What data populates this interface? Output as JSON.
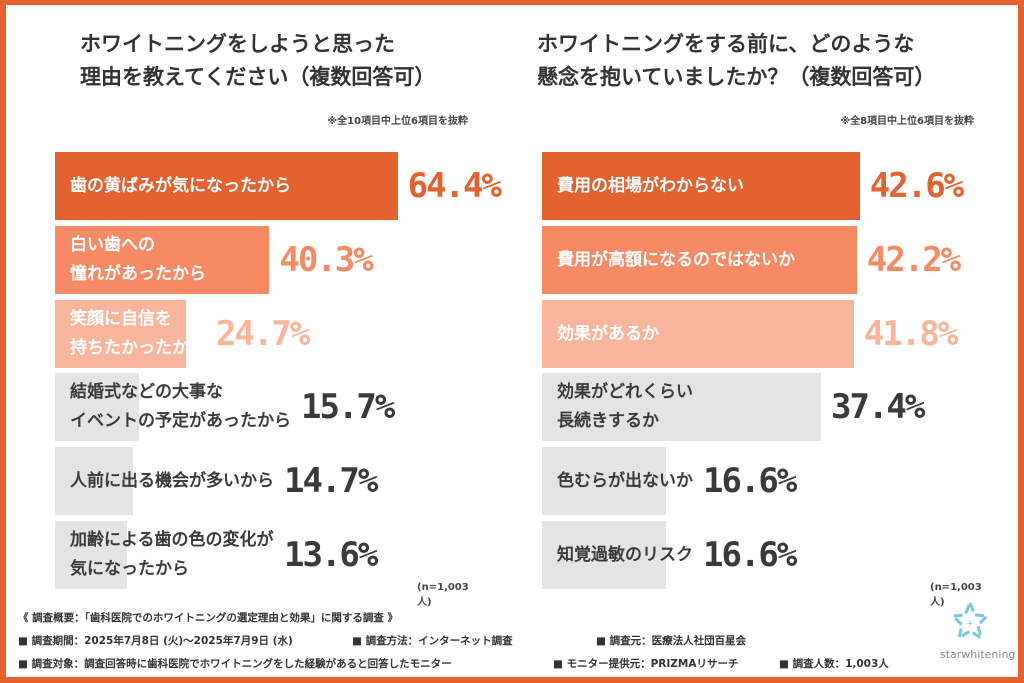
{
  "colors": {
    "frame": "#e4622f",
    "rank1": "#e4622f",
    "rank2": "#f68a64",
    "rank3": "#f9b59b",
    "other": "#e4e4e4",
    "other_text": "#3a3a3a"
  },
  "chart_data": [
    {
      "type": "bar",
      "orientation": "horizontal",
      "title": "ホワイトニングをしようと思った\n理由を教えてください（複数回答可）",
      "note": "※全10項目中上位6項目を抜粋",
      "sample": "(n=1,003人)",
      "categories": [
        "歯の黄ばみが気になったから",
        "白い歯への\n憧れがあったから",
        "笑顔に自信を\n持ちたかったから",
        "結婚式などの大事な\nイベントの予定があったから",
        "人前に出る機会が多いから",
        "加齢による歯の色の変化が\n気になったから"
      ],
      "values": [
        64.4,
        40.3,
        24.7,
        15.7,
        14.7,
        13.6
      ],
      "labels": [
        "64.4%",
        "40.3%",
        "24.7%",
        "15.7%",
        "14.7%",
        "13.6%"
      ],
      "unit": "%"
    },
    {
      "type": "bar",
      "orientation": "horizontal",
      "title": "ホワイトニングをする前に、どのような\n懸念を抱いていましたか？（複数回答可）",
      "note": "※全8項目中上位6項目を抜粋",
      "sample": "(n=1,003人)",
      "categories": [
        "費用の相場がわからない",
        "費用が高額になるのではないか",
        "効果があるか",
        "効果がどれくらい\n長続きするか",
        "色むらが出ないか",
        "知覚過敏のリスク"
      ],
      "values": [
        42.6,
        42.2,
        41.8,
        37.4,
        16.6,
        16.6
      ],
      "labels": [
        "42.6%",
        "42.2%",
        "41.8%",
        "37.4%",
        "16.6%",
        "16.6%"
      ],
      "unit": "%"
    }
  ],
  "footer": {
    "line1": "《 調査概要：「歯科医院でのホワイトニングの選定理由と効果」に関する調査 》",
    "line2": [
      "■ 調査期間：2025年7月8日 (火)〜2025年7月9日 (水)",
      "■ 調査方法：インターネット調査",
      "■ 調査元：医療法人社団百星会"
    ],
    "line3": [
      "■ 調査対象：調査回答時に歯科医院でホワイトニングをした経験があると回答したモニター",
      "■ モニター提供元：PRIZMAリサーチ",
      "■ 調査人数：1,003人"
    ]
  },
  "logo": {
    "text": "starwhitening",
    "icon": "star-logo-icon"
  }
}
